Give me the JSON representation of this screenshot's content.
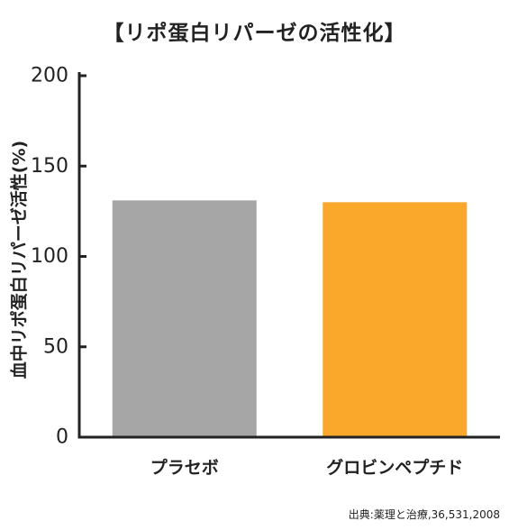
{
  "chart_data": {
    "type": "bar",
    "title": "【リポ蛋白リパーゼの活性化】",
    "xlabel": "",
    "ylabel": "血中リポ蛋白リパーゼ活性(%)",
    "categories": [
      "プラセボ",
      "グロビンペプチド"
    ],
    "values": [
      131,
      130
    ],
    "colors": [
      "#a6a6a6",
      "#f9a82b"
    ],
    "ylim": [
      0,
      200
    ],
    "yticks": [
      0,
      50,
      100,
      150,
      200
    ],
    "grid": false
  },
  "source": "出典:薬理と治療,36,531,2008"
}
